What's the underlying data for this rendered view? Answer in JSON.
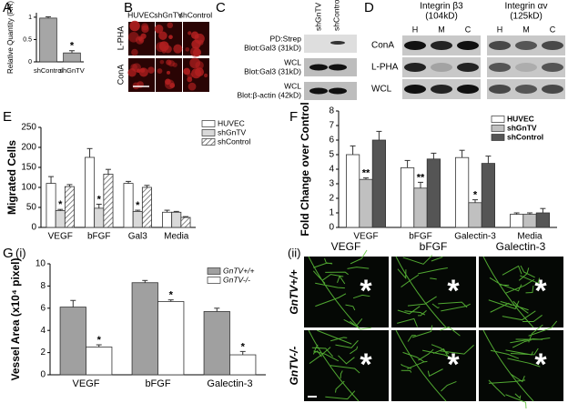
{
  "chart_data": [
    {
      "type": "bar",
      "panel": "A",
      "ylabel": "Relative Quantity (RR)",
      "categories": [
        "shControl",
        "shGnTV"
      ],
      "values": [
        0.98,
        0.2
      ],
      "errors": [
        0.03,
        0.05
      ],
      "annotations": [
        null,
        "*"
      ],
      "color": "#a6a6a6",
      "ylim": [
        0,
        1.1
      ],
      "yticks": [
        0,
        0.5,
        1
      ]
    },
    {
      "type": "bar",
      "panel": "E",
      "ylabel": "Migrated Cells",
      "categories": [
        "VEGF",
        "bFGF",
        "Gal3",
        "Media"
      ],
      "series": [
        {
          "name": "HUVEC",
          "color": "#ffffff",
          "values": [
            110,
            175,
            110,
            38
          ],
          "errors": [
            17,
            22,
            5,
            5
          ],
          "annotations": [
            null,
            null,
            null,
            null
          ]
        },
        {
          "name": "shGnTV",
          "color": "#d9d9d9",
          "values": [
            42,
            48,
            40,
            38
          ],
          "errors": [
            3,
            10,
            3,
            2
          ],
          "annotations": [
            "*",
            "*",
            "*",
            null
          ]
        },
        {
          "name": "shControl",
          "color": "#bfbfbf",
          "pattern": "hatch",
          "values": [
            102,
            133,
            100,
            25
          ],
          "errors": [
            5,
            12,
            5,
            2
          ],
          "annotations": [
            null,
            null,
            null,
            null
          ]
        }
      ],
      "ylim": [
        0,
        250
      ],
      "yticks": [
        0,
        50,
        100,
        150,
        200,
        250
      ],
      "legend": "upper right"
    },
    {
      "type": "bar",
      "panel": "F",
      "ylabel": "Fold Change over Control",
      "categories": [
        "VEGF",
        "bFGF",
        "Galectin-3",
        "Media"
      ],
      "series": [
        {
          "name": "HUVEC",
          "color": "#ffffff",
          "values": [
            5.0,
            4.1,
            4.8,
            0.9
          ],
          "errors": [
            0.6,
            0.5,
            0.5,
            0.1
          ],
          "annotations": [
            null,
            null,
            null,
            null
          ]
        },
        {
          "name": "shGnTV",
          "color": "#c0c0c0",
          "values": [
            3.3,
            2.7,
            1.7,
            0.9
          ],
          "errors": [
            0.1,
            0.4,
            0.2,
            0.1
          ],
          "annotations": [
            "**",
            "**",
            "*",
            null
          ]
        },
        {
          "name": "shControl",
          "color": "#555555",
          "values": [
            6.0,
            4.7,
            4.4,
            1.0
          ],
          "errors": [
            0.6,
            0.4,
            0.5,
            0.3
          ],
          "annotations": [
            null,
            null,
            null,
            null
          ]
        }
      ],
      "ylim": [
        0,
        8
      ],
      "yticks": [
        0,
        1,
        2,
        3,
        4,
        5,
        6,
        7,
        8
      ],
      "legend": "upper right"
    },
    {
      "type": "bar",
      "panel": "G",
      "subpanel": "(i)",
      "ylabel": "Vessel Area (x10⁴ pixel)",
      "categories": [
        "VEGF",
        "bFGF",
        "Galectin-3"
      ],
      "series": [
        {
          "name": "GnTV+/+",
          "color": "#a0a0a0",
          "values": [
            6.1,
            8.3,
            5.7
          ],
          "errors": [
            0.6,
            0.2,
            0.3
          ],
          "annotations": [
            null,
            null,
            null
          ]
        },
        {
          "name": "GnTV-/-",
          "color": "#ffffff",
          "values": [
            2.5,
            6.6,
            1.8
          ],
          "errors": [
            0.2,
            0.15,
            0.3
          ],
          "annotations": [
            "*",
            "*",
            "*"
          ]
        }
      ],
      "ylim": [
        0,
        10
      ],
      "yticks": [
        0,
        2,
        4,
        6,
        8,
        10
      ],
      "legend": "upper right"
    }
  ],
  "panel_b": {
    "label": "B",
    "columns": [
      "HUVEC",
      "shGnTV",
      "shControl"
    ],
    "rows": [
      "L-PHA",
      "ConA"
    ]
  },
  "panel_c": {
    "label": "C",
    "columns": [
      "shGnTV",
      "shControl"
    ],
    "rows": [
      [
        "PD:Strep",
        "Blot:Gal3 (31kD)"
      ],
      [
        "WCL",
        "Blot:Gal3 (31kD)"
      ],
      [
        "WCL",
        "Blot:β-actin (42kD)"
      ]
    ]
  },
  "panel_d": {
    "label": "D",
    "groups": [
      [
        "Integrin β3",
        "(104kD)"
      ],
      [
        "Integrin αv",
        "(125kD)"
      ]
    ],
    "lanes": [
      "H",
      "M",
      "C"
    ],
    "rows": [
      "ConA",
      "L-PHA",
      "WCL"
    ]
  },
  "panel_g_ii": {
    "label": "(ii)",
    "columns": [
      "VEGF",
      "bFGF",
      "Galectin-3"
    ],
    "rows": [
      "GnTV+/+",
      "GnTV-/-"
    ],
    "marker": "*"
  }
}
